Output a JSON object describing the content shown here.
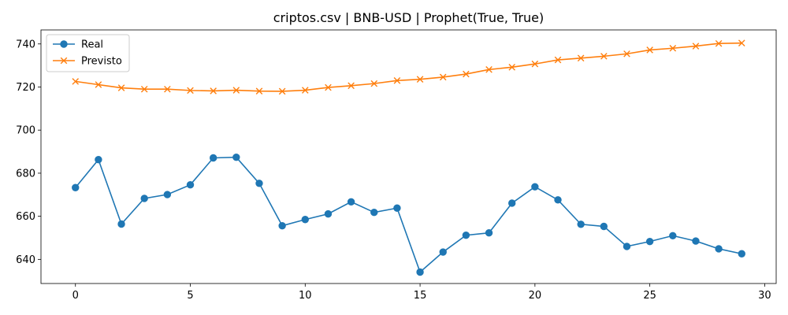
{
  "chart_data": {
    "type": "line",
    "title": "criptos.csv | BNB-USD | Prophet(True, True)",
    "xlabel": "",
    "ylabel": "",
    "xlim": [
      -1.5,
      30.5
    ],
    "ylim": [
      628.8,
      746.5
    ],
    "xticks": [
      0,
      5,
      10,
      15,
      20,
      25,
      30
    ],
    "yticks": [
      640,
      660,
      680,
      700,
      720,
      740
    ],
    "grid": false,
    "legend_position": "upper left",
    "x": [
      0,
      1,
      2,
      3,
      4,
      5,
      6,
      7,
      8,
      9,
      10,
      11,
      12,
      13,
      14,
      15,
      16,
      17,
      18,
      19,
      20,
      21,
      22,
      23,
      24,
      25,
      26,
      27,
      28,
      29
    ],
    "series": [
      {
        "name": "Real",
        "color": "#1f77b4",
        "marker": "circle",
        "values": [
          673.3,
          686.3,
          656.4,
          668.3,
          670.1,
          674.6,
          687.1,
          687.4,
          675.3,
          655.6,
          658.5,
          661.1,
          666.7,
          661.8,
          663.8,
          634.1,
          643.4,
          651.2,
          652.3,
          666.1,
          673.7,
          667.6,
          656.3,
          655.3,
          646.0,
          648.3,
          651.0,
          648.5,
          644.9,
          642.6
        ]
      },
      {
        "name": "Previsto",
        "color": "#ff7f0e",
        "marker": "x",
        "values": [
          722.6,
          721.1,
          719.6,
          719.0,
          719.0,
          718.4,
          718.2,
          718.5,
          718.1,
          718.0,
          718.5,
          719.8,
          720.6,
          721.6,
          723.0,
          723.6,
          724.6,
          726.0,
          728.1,
          729.2,
          730.7,
          732.6,
          733.4,
          734.3,
          735.4,
          737.2,
          738.0,
          739.0,
          740.2,
          740.4
        ]
      }
    ]
  }
}
